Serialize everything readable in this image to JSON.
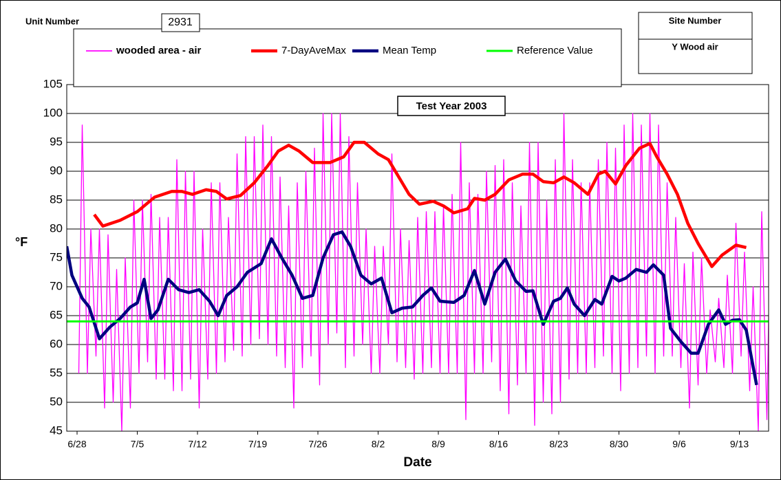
{
  "chart_data": {
    "type": "line",
    "title": "Test Year 2003",
    "unit_label": "Unit Number",
    "unit_number": "2931",
    "site_label": "Site Number",
    "site_name": "Y Wood air",
    "xlabel": "Date",
    "ylabel": "°F",
    "xlim": [
      -1.2,
      80.4
    ],
    "ylim": [
      45,
      105
    ],
    "yticks": [
      45,
      50,
      55,
      60,
      65,
      70,
      75,
      80,
      85,
      90,
      95,
      100,
      105
    ],
    "xticks": [
      {
        "value": 0,
        "label": "6/28"
      },
      {
        "value": 7,
        "label": "7/5"
      },
      {
        "value": 14,
        "label": "7/12"
      },
      {
        "value": 21,
        "label": "7/19"
      },
      {
        "value": 28,
        "label": "7/26"
      },
      {
        "value": 35,
        "label": "8/2"
      },
      {
        "value": 42,
        "label": "8/9"
      },
      {
        "value": 49,
        "label": "8/16"
      },
      {
        "value": 56,
        "label": "8/23"
      },
      {
        "value": 63,
        "label": "8/30"
      },
      {
        "value": 70,
        "label": "9/6"
      },
      {
        "value": 77,
        "label": "9/13"
      }
    ],
    "grid": true,
    "series": [
      {
        "name": "wooded area - air",
        "color": "#ff00ff",
        "x": [
          0.2,
          0.6,
          1.2,
          1.6,
          2.2,
          2.6,
          3.2,
          3.6,
          4.2,
          4.6,
          5.2,
          5.6,
          6.2,
          6.6,
          7.2,
          7.6,
          8.2,
          8.6,
          9.2,
          9.6,
          10.2,
          10.6,
          11.2,
          11.6,
          12.2,
          12.6,
          13.2,
          13.6,
          14.2,
          14.6,
          15.2,
          15.6,
          16.2,
          16.6,
          17.2,
          17.6,
          18.2,
          18.6,
          19.2,
          19.6,
          20.2,
          20.6,
          21.2,
          21.6,
          22.2,
          22.6,
          23.2,
          23.6,
          24.2,
          24.6,
          25.2,
          25.6,
          26.2,
          26.6,
          27.2,
          27.6,
          28.2,
          28.6,
          29.2,
          29.6,
          30.2,
          30.6,
          31.2,
          31.6,
          32.2,
          32.6,
          33.2,
          33.6,
          34.2,
          34.6,
          35.2,
          35.6,
          36.2,
          36.6,
          37.2,
          37.6,
          38.2,
          38.6,
          39.2,
          39.6,
          40.2,
          40.6,
          41.2,
          41.6,
          42.2,
          42.6,
          43.2,
          43.6,
          44.2,
          44.6,
          45.2,
          45.6,
          46.2,
          46.6,
          47.2,
          47.6,
          48.2,
          48.6,
          49.2,
          49.6,
          50.2,
          50.6,
          51.2,
          51.6,
          52.2,
          52.6,
          53.2,
          53.6,
          54.2,
          54.6,
          55.2,
          55.6,
          56.2,
          56.6,
          57.2,
          57.6,
          58.2,
          58.6,
          59.2,
          59.6,
          60.2,
          60.6,
          61.2,
          61.6,
          62.2,
          62.6,
          63.2,
          63.6,
          64.2,
          64.6,
          65.2,
          65.6,
          66.2,
          66.6,
          67.2,
          67.6,
          68.2,
          68.6,
          69.2,
          69.6,
          70.2,
          70.6,
          71.2,
          71.6,
          72.2,
          72.6,
          73.2,
          73.6,
          74.2,
          74.6,
          75.2,
          75.6,
          76.2,
          76.6,
          77.2,
          77.6,
          78.2,
          78.6,
          79.2,
          79.6,
          80.2,
          80.6
        ],
        "values": [
          55,
          98,
          55,
          80,
          58,
          80,
          49,
          79,
          50,
          73,
          45,
          75,
          49,
          85,
          55,
          85,
          57,
          86,
          54,
          82,
          54,
          82,
          52,
          92,
          52,
          90,
          54,
          90,
          49,
          80,
          54,
          88,
          55,
          88,
          57,
          82,
          59,
          93,
          58,
          96,
          60,
          96,
          61,
          98,
          60,
          96,
          58,
          89,
          56,
          84,
          49,
          88,
          56,
          90,
          58,
          94,
          53,
          100,
          60,
          100,
          62,
          100,
          56,
          96,
          58,
          88,
          60,
          80,
          55,
          77,
          55,
          77,
          60,
          93,
          57,
          80,
          56,
          78,
          54,
          82,
          55,
          83,
          56,
          83,
          55,
          84,
          55,
          86,
          55,
          95,
          47,
          88,
          55,
          86,
          55,
          90,
          57,
          91,
          52,
          92,
          48,
          88,
          53,
          84,
          55,
          95,
          46,
          95,
          50,
          85,
          48,
          92,
          50,
          100,
          54,
          92,
          55,
          88,
          55,
          88,
          56,
          92,
          58,
          95,
          55,
          94,
          52,
          98,
          55,
          100,
          56,
          98,
          58,
          100,
          55,
          98,
          58,
          88,
          58,
          82,
          56,
          74,
          49,
          76,
          53,
          75,
          55,
          66,
          57,
          68,
          56,
          72,
          55,
          81,
          58,
          76,
          52,
          70,
          45,
          83,
          47,
          82
        ]
      },
      {
        "name": "7-DayAveMax",
        "color": "#ff0000",
        "x": [
          2,
          3,
          5,
          7,
          9,
          11,
          12.2,
          13.4,
          15,
          16.2,
          17.4,
          19,
          20.6,
          22.2,
          23.4,
          24.6,
          25.8,
          27.4,
          29.4,
          31,
          32.2,
          33.4,
          35,
          36.2,
          37.4,
          38.6,
          39.8,
          41.4,
          42.6,
          43.8,
          45.4,
          46.2,
          47.4,
          48.6,
          50.2,
          51.8,
          53,
          54.2,
          55.4,
          56.6,
          57.8,
          59.4,
          60.6,
          61.4,
          62.6,
          63.8,
          65.4,
          66.6,
          67.4,
          68.6,
          69.8,
          71,
          72.2,
          73.8,
          75,
          76.6,
          77.8
        ],
        "values": [
          82.5,
          80.5,
          81.5,
          83,
          85.5,
          86.5,
          86.5,
          86,
          86.8,
          86.5,
          85.2,
          85.8,
          88,
          91,
          93.5,
          94.5,
          93.5,
          91.5,
          91.5,
          92.5,
          95,
          95,
          93,
          92,
          89,
          86,
          84.3,
          84.8,
          84,
          82.8,
          83.5,
          85.3,
          85,
          86,
          88.5,
          89.5,
          89.5,
          88.2,
          88,
          89,
          88,
          86,
          89.5,
          90,
          87.8,
          91,
          94,
          94.8,
          92.5,
          89.5,
          86,
          81,
          77.5,
          73.5,
          75.5,
          77.2,
          76.8
        ]
      },
      {
        "name": "Mean Temp",
        "color": "#000080",
        "x": [
          -1.2,
          -0.6,
          0.6,
          1.4,
          2.6,
          3.8,
          5,
          6.2,
          7,
          7.8,
          8.6,
          9.4,
          10.6,
          11.8,
          13,
          14.2,
          15.4,
          16.4,
          17.4,
          18.6,
          19.8,
          21.4,
          22.6,
          23.8,
          25,
          26.2,
          27.4,
          28.6,
          29.8,
          30.8,
          31.8,
          33,
          34.2,
          35.4,
          36.6,
          37.8,
          39,
          40.2,
          41.2,
          42.2,
          43.8,
          45,
          46.2,
          47.4,
          48.6,
          49.8,
          51,
          52.2,
          53,
          54.2,
          55.4,
          56.2,
          57,
          57.8,
          59,
          60.2,
          61,
          62.2,
          63,
          63.8,
          65,
          66.2,
          67,
          68.2,
          69,
          70.2,
          71.4,
          72.2,
          73.4,
          74.6,
          75.4,
          76.2,
          77,
          77.8,
          79
        ],
        "values": [
          77,
          72,
          68,
          66.5,
          61,
          63,
          64.5,
          66.5,
          67.2,
          71.3,
          64.5,
          66,
          71.3,
          69.5,
          69,
          69.5,
          67.5,
          65,
          68.5,
          70,
          72.5,
          74,
          78.3,
          75,
          72,
          68,
          68.5,
          75,
          79,
          79.5,
          77,
          72,
          70.5,
          71.5,
          65.5,
          66.3,
          66.5,
          68.5,
          69.8,
          67.5,
          67.3,
          68.5,
          72.8,
          67,
          72.5,
          74.8,
          71,
          69.2,
          69.3,
          63.5,
          67.5,
          68,
          69.8,
          67,
          65,
          67.8,
          67,
          71.8,
          71,
          71.5,
          73,
          72.5,
          73.8,
          72,
          62.8,
          60.5,
          58.5,
          58.5,
          63.5,
          66,
          63.5,
          64.2,
          64.3,
          62.5,
          53
        ]
      },
      {
        "name": "Reference Value",
        "color": "#00ff00",
        "x": [
          -1.2,
          80.4
        ],
        "values": [
          64,
          64
        ]
      }
    ]
  }
}
